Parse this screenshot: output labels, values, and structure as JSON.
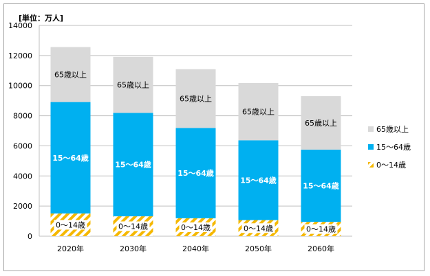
{
  "chart_data": {
    "type": "bar",
    "stacked": true,
    "unit_label": "[単位：万人]",
    "categories": [
      "2020年",
      "2030年",
      "2040年",
      "2050年",
      "2060年"
    ],
    "ylim": [
      0,
      14000
    ],
    "yticks": [
      0,
      2000,
      4000,
      6000,
      8000,
      10000,
      12000,
      14000
    ],
    "grid": true,
    "legend_position": "right",
    "series": [
      {
        "name": "0〜14歳",
        "label": "0〜14歳",
        "values": [
          1510,
          1320,
          1190,
          1070,
          950
        ],
        "color": "#f5b800",
        "pattern": "diagonal-stripes"
      },
      {
        "name": "15〜64歳",
        "label": "15〜64歳",
        "values": [
          7400,
          6870,
          6000,
          5300,
          4800
        ],
        "color": "#00b0f0",
        "pattern": "solid"
      },
      {
        "name": "65歳以上",
        "label": "65歳以上",
        "values": [
          3650,
          3720,
          3900,
          3800,
          3550
        ],
        "color": "#d9d9d9",
        "pattern": "solid"
      }
    ]
  }
}
